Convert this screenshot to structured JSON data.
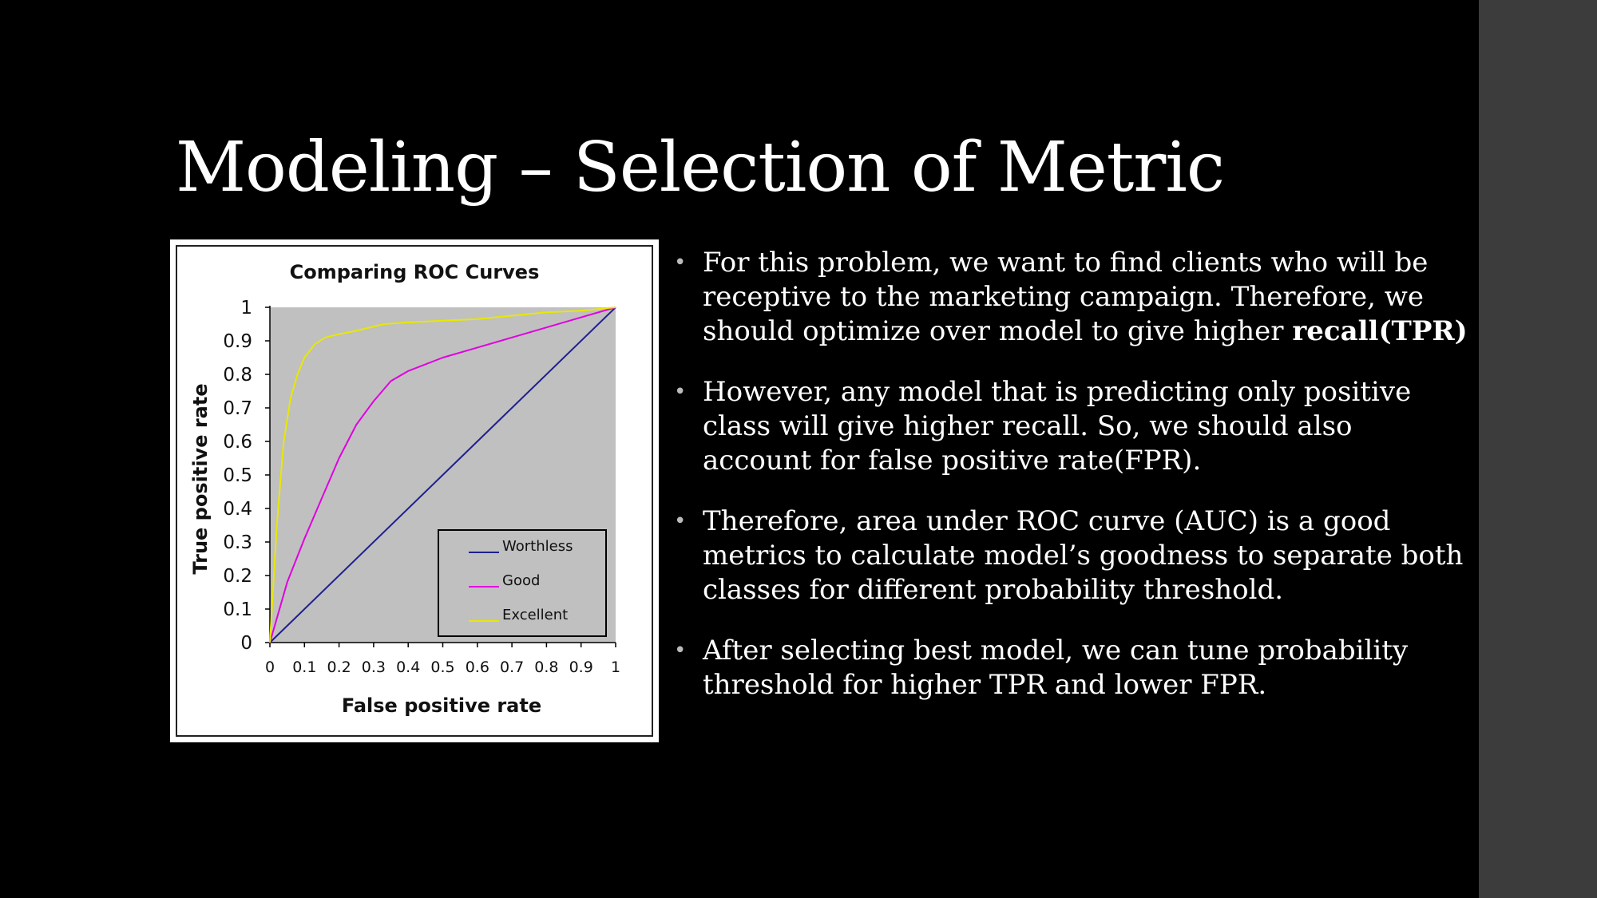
{
  "slide": {
    "title": "Modeling – Selection of Metric",
    "bullets": [
      {
        "text": "For this problem, we want to find clients who will be receptive to the marketing campaign. Therefore, we should optimize over model to give higher ",
        "bold": "recall(TPR)"
      },
      {
        "text": "However, any model that is predicting only positive class will give higher recall. So, we should also account for false positive rate(FPR).",
        "bold": ""
      },
      {
        "text": "Therefore, area under ROC curve (AUC) is a good metrics to calculate model’s goodness to separate both classes for different probability threshold.",
        "bold": ""
      },
      {
        "text": "After selecting best model, we can tune probability threshold for higher TPR and lower FPR.",
        "bold": ""
      }
    ]
  },
  "chart_data": {
    "type": "line",
    "title": "Comparing ROC Curves",
    "xlabel": "False positive rate",
    "ylabel": "True positive rate",
    "xlim": [
      0,
      1
    ],
    "ylim": [
      0,
      1
    ],
    "xticks": [
      "0",
      "0.1",
      "0.2",
      "0.3",
      "0.4",
      "0.5",
      "0.6",
      "0.7",
      "0.8",
      "0.9",
      "1"
    ],
    "yticks": [
      "0",
      "0.1",
      "0.2",
      "0.3",
      "0.4",
      "0.5",
      "0.6",
      "0.7",
      "0.8",
      "0.9",
      "1"
    ],
    "grid": false,
    "legend_position": "bottom-right",
    "plot_background": "#c0c0c0",
    "series": [
      {
        "name": "Worthless",
        "color": "#1f1f8f",
        "x": [
          0,
          1
        ],
        "y": [
          0,
          1
        ]
      },
      {
        "name": "Good",
        "color": "#e000e0",
        "x": [
          0,
          0.05,
          0.1,
          0.15,
          0.2,
          0.25,
          0.3,
          0.35,
          0.4,
          0.5,
          0.6,
          0.7,
          0.8,
          0.9,
          1
        ],
        "y": [
          0,
          0.18,
          0.31,
          0.43,
          0.55,
          0.65,
          0.72,
          0.78,
          0.81,
          0.85,
          0.88,
          0.91,
          0.94,
          0.97,
          1
        ]
      },
      {
        "name": "Excellent",
        "color": "#e8e800",
        "x": [
          0,
          0.02,
          0.04,
          0.06,
          0.08,
          0.1,
          0.13,
          0.16,
          0.2,
          0.25,
          0.33,
          0.4,
          0.5,
          0.6,
          0.7,
          0.8,
          0.9,
          1
        ],
        "y": [
          0,
          0.35,
          0.6,
          0.73,
          0.8,
          0.85,
          0.89,
          0.91,
          0.92,
          0.93,
          0.95,
          0.955,
          0.96,
          0.965,
          0.975,
          0.985,
          0.99,
          1
        ]
      }
    ]
  }
}
